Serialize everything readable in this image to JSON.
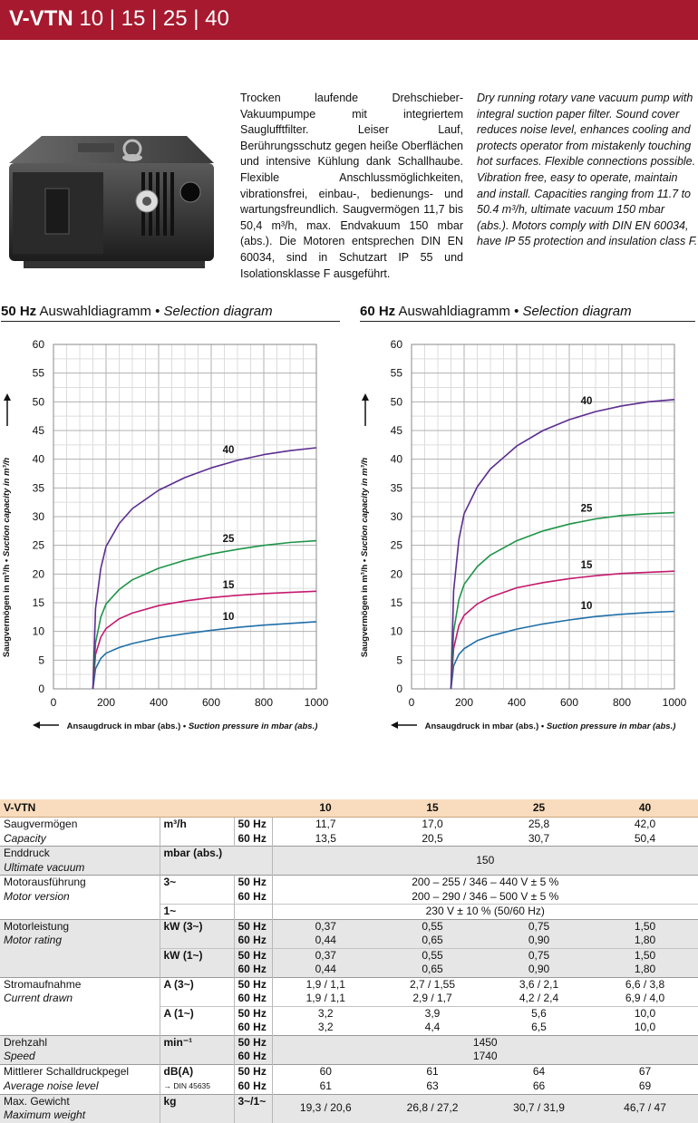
{
  "header": {
    "title_bold": "V-VTN",
    "title_rest": " 10 | 15 | 25 | 40"
  },
  "description": {
    "de": "Trocken laufende Drehschieber-Vakuumpumpe mit integriertem Sauglufftfilter. Leiser Lauf, Berührungsschutz gegen heiße Oberflächen und intensive Kühlung dank Schallhaube. Flexible Anschlussmöglichkeiten, vibrationsfrei, einbau-, bedienungs- und wartungsfreundlich. Saugvermögen 11,7 bis 50,4 m³/h, max. Endvakuum 150 mbar (abs.). Die Motoren entsprechen DIN EN 60034, sind in Schutzart IP 55 und Isolationsklasse F ausgeführt.",
    "en": "Dry running rotary vane vacuum pump with integral suction paper filter. Sound cover reduces noise level, enhances cooling and protects operator from mistakenly touching hot surfaces. Flexible connections possible. Vibration free, easy to operate, maintain and install. Capacities ranging from 11.7 to 50.4 m³/h, ultimate vacuum 150 mbar (abs.). Motors comply with DIN EN 60034, have IP 55 protection and insulation class F."
  },
  "charts": [
    {
      "freq": "50 Hz",
      "title_de": " Auswahldiagramm • ",
      "title_en": "Selection diagram"
    },
    {
      "freq": "60 Hz",
      "title_de": " Auswahldiagramm • ",
      "title_en": "Selection diagram"
    }
  ],
  "chart_data": [
    {
      "type": "line",
      "title": "50 Hz Auswahldiagramm • Selection diagram",
      "xlabel": "Ansaugdruck in mbar (abs.) • Suction pressure in mbar (abs.)",
      "ylabel": "Saugvermögen in m³/h • Suction capacity in m³/h",
      "xlim": [
        0,
        1000
      ],
      "ylim": [
        0,
        60
      ],
      "xticks": [
        0,
        200,
        400,
        600,
        800,
        1000
      ],
      "yticks": [
        0,
        5,
        10,
        15,
        20,
        25,
        30,
        35,
        40,
        45,
        50,
        55,
        60
      ],
      "grid": true,
      "series": [
        {
          "name": "10",
          "color": "#1f6fa8",
          "x": [
            150,
            160,
            180,
            200,
            250,
            300,
            400,
            500,
            600,
            700,
            800,
            900,
            1000
          ],
          "y": [
            0,
            3.5,
            5.3,
            6.2,
            7.2,
            7.9,
            8.9,
            9.6,
            10.2,
            10.7,
            11.1,
            11.4,
            11.7
          ]
        },
        {
          "name": "15",
          "color": "#c41a6e",
          "x": [
            150,
            160,
            180,
            200,
            250,
            300,
            400,
            500,
            600,
            700,
            800,
            900,
            1000
          ],
          "y": [
            0,
            6,
            9,
            10.5,
            12.2,
            13.2,
            14.5,
            15.3,
            15.9,
            16.3,
            16.6,
            16.8,
            17.0
          ]
        },
        {
          "name": "25",
          "color": "#1e9448",
          "x": [
            150,
            160,
            180,
            200,
            250,
            300,
            400,
            500,
            600,
            700,
            800,
            900,
            1000
          ],
          "y": [
            0,
            8,
            12.5,
            14.8,
            17.3,
            19.0,
            21.0,
            22.4,
            23.5,
            24.3,
            25.0,
            25.5,
            25.8
          ]
        },
        {
          "name": "40",
          "color": "#5c2d91",
          "x": [
            150,
            160,
            180,
            200,
            250,
            300,
            400,
            500,
            600,
            700,
            800,
            900,
            1000
          ],
          "y": [
            0,
            14,
            21,
            24.8,
            28.8,
            31.4,
            34.6,
            36.8,
            38.5,
            39.8,
            40.8,
            41.5,
            42.0
          ]
        }
      ]
    },
    {
      "type": "line",
      "title": "60 Hz Auswahldiagramm • Selection diagram",
      "xlabel": "Ansaugdruck in mbar (abs.) • Suction pressure in mbar (abs.)",
      "ylabel": "Saugvermögen in m³/h • Suction capacity in m³/h",
      "xlim": [
        0,
        1000
      ],
      "ylim": [
        0,
        60
      ],
      "xticks": [
        0,
        200,
        400,
        600,
        800,
        1000
      ],
      "yticks": [
        0,
        5,
        10,
        15,
        20,
        25,
        30,
        35,
        40,
        45,
        50,
        55,
        60
      ],
      "grid": true,
      "series": [
        {
          "name": "10",
          "color": "#1f6fa8",
          "x": [
            150,
            160,
            180,
            200,
            250,
            300,
            400,
            500,
            600,
            700,
            800,
            900,
            1000
          ],
          "y": [
            0,
            4,
            6,
            7,
            8.4,
            9.2,
            10.4,
            11.3,
            12.0,
            12.6,
            13.0,
            13.3,
            13.5
          ]
        },
        {
          "name": "15",
          "color": "#c41a6e",
          "x": [
            150,
            160,
            180,
            200,
            250,
            300,
            400,
            500,
            600,
            700,
            800,
            900,
            1000
          ],
          "y": [
            0,
            7,
            11,
            12.8,
            14.8,
            16.0,
            17.6,
            18.5,
            19.2,
            19.7,
            20.1,
            20.3,
            20.5
          ]
        },
        {
          "name": "25",
          "color": "#1e9448",
          "x": [
            150,
            160,
            180,
            200,
            250,
            300,
            400,
            500,
            600,
            700,
            800,
            900,
            1000
          ],
          "y": [
            0,
            10,
            15.5,
            18.2,
            21.3,
            23.3,
            25.8,
            27.5,
            28.7,
            29.6,
            30.2,
            30.5,
            30.7
          ]
        },
        {
          "name": "40",
          "color": "#5c2d91",
          "x": [
            150,
            160,
            180,
            200,
            250,
            300,
            400,
            500,
            600,
            700,
            800,
            900,
            1000
          ],
          "y": [
            0,
            17,
            26,
            30.5,
            35.2,
            38.3,
            42.3,
            45.0,
            46.9,
            48.3,
            49.3,
            50.0,
            50.4
          ]
        }
      ]
    }
  ],
  "table": {
    "header": [
      "V-VTN",
      "10",
      "15",
      "25",
      "40"
    ],
    "rows": {
      "cap": {
        "de": "Saugvermögen",
        "en": "Capacity",
        "unit": "m³/h",
        "hz1": "50 Hz",
        "hz2": "60 Hz",
        "v50": [
          "11,7",
          "17,0",
          "25,8",
          "42,0"
        ],
        "v60": [
          "13,5",
          "20,5",
          "30,7",
          "50,4"
        ]
      },
      "vac": {
        "de": "Enddruck",
        "en": "Ultimate vacuum",
        "unit": "mbar (abs.)",
        "value": "150"
      },
      "mot": {
        "de": "Motorausführung",
        "en": "Motor version",
        "unit3": "3~",
        "hz1": "50 Hz",
        "hz2": "60 Hz",
        "v50": "200 – 255 / 346 – 440 V ± 5 %",
        "v60": "200 – 290 / 346 – 500 V ± 5 %",
        "unit1": "1~",
        "v1": "230 V ± 10 % (50/60 Hz)"
      },
      "rat": {
        "de": "Motorleistung",
        "en": "Motor rating",
        "unit3": "kW (3~)",
        "unit1": "kW (1~)",
        "hz1": "50 Hz",
        "hz2": "60 Hz",
        "a50": [
          "0,37",
          "0,55",
          "0,75",
          "1,50"
        ],
        "a60": [
          "0,44",
          "0,65",
          "0,90",
          "1,80"
        ],
        "b50": [
          "0,37",
          "0,55",
          "0,75",
          "1,50"
        ],
        "b60": [
          "0,44",
          "0,65",
          "0,90",
          "1,80"
        ]
      },
      "cur": {
        "de": "Stromaufnahme",
        "en": "Current drawn",
        "unit3": "A (3~)",
        "unit1": "A (1~)",
        "hz1": "50 Hz",
        "hz2": "60 Hz",
        "a50": [
          "1,9 / 1,1",
          "2,7 / 1,55",
          "3,6 / 2,1",
          "6,6 / 3,8"
        ],
        "a60": [
          "1,9 / 1,1",
          "2,9 / 1,7",
          "4,2 / 2,4",
          "6,9 / 4,0"
        ],
        "b50": [
          "3,2",
          "3,9",
          "5,6",
          "10,0"
        ],
        "b60": [
          "3,2",
          "4,4",
          "6,5",
          "10,0"
        ]
      },
      "spd": {
        "de": "Drehzahl",
        "en": "Speed",
        "unit": "min⁻¹",
        "hz1": "50 Hz",
        "hz2": "60 Hz",
        "v50": "1450",
        "v60": "1740"
      },
      "noi": {
        "de": "Mittlerer Schalldruckpegel",
        "en": "Average noise level",
        "unit": "dB(A)",
        "unit_sub": "→ DIN 45635",
        "hz1": "50 Hz",
        "hz2": "60 Hz",
        "v50": [
          "60",
          "61",
          "64",
          "67"
        ],
        "v60": [
          "61",
          "63",
          "66",
          "69"
        ]
      },
      "wgt": {
        "de": "Max. Gewicht",
        "en": "Maximum weight",
        "unit": "kg",
        "hz": "3~/1~",
        "v": [
          "19,3 / 20,6",
          "26,8 / 27,2",
          "30,7 / 31,9",
          "46,7 / 47"
        ]
      }
    }
  }
}
